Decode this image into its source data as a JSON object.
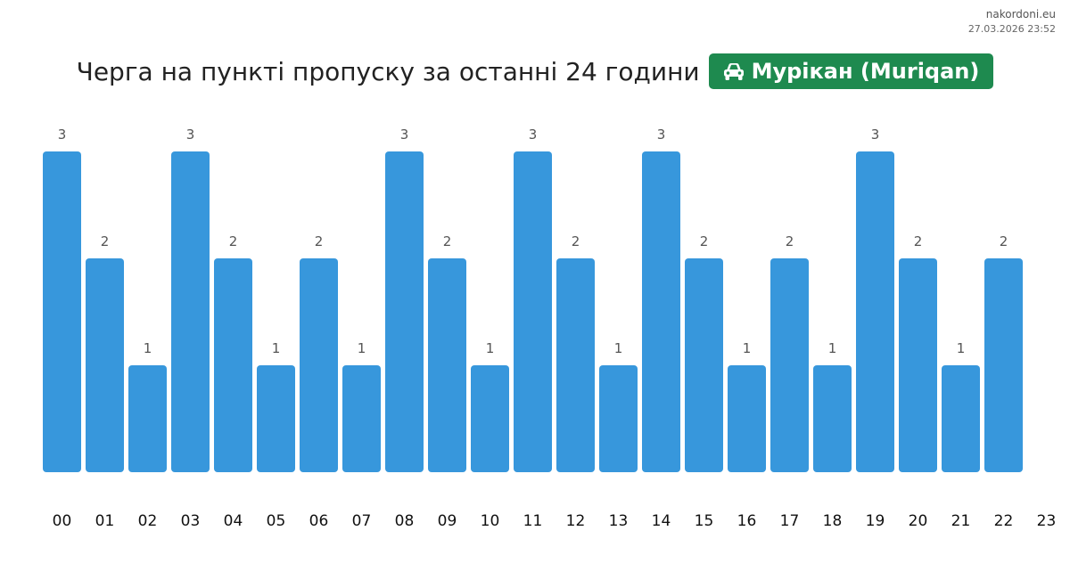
{
  "header": {
    "site": "nakordoni.eu",
    "timestamp": "27.03.2026 23:52",
    "title": "Черга на пункті пропуску за останні 24 години",
    "checkpoint": "Мурікан (Muriqan)",
    "checkpoint_icon": "car-icon",
    "badge_color": "#1e8a4f"
  },
  "chart_data": {
    "type": "bar",
    "title": "Черга на пункті пропуску за останні 24 години",
    "categories": [
      "00",
      "01",
      "02",
      "03",
      "04",
      "05",
      "06",
      "07",
      "08",
      "09",
      "10",
      "11",
      "12",
      "13",
      "14",
      "15",
      "16",
      "17",
      "18",
      "19",
      "20",
      "21",
      "22"
    ],
    "x_tick_labels": [
      "00",
      "01",
      "02",
      "03",
      "04",
      "05",
      "06",
      "07",
      "08",
      "09",
      "10",
      "11",
      "12",
      "13",
      "14",
      "15",
      "16",
      "17",
      "18",
      "19",
      "20",
      "21",
      "22",
      "23"
    ],
    "values": [
      3,
      2,
      1,
      3,
      2,
      1,
      2,
      1,
      3,
      2,
      1,
      3,
      2,
      1,
      3,
      2,
      1,
      2,
      1,
      3,
      2,
      1,
      2
    ],
    "ylim": [
      0,
      3
    ],
    "xlabel": "",
    "ylabel": "",
    "grid": false,
    "legend": "none",
    "data_labels": true,
    "bar_color": "#3797dc"
  }
}
